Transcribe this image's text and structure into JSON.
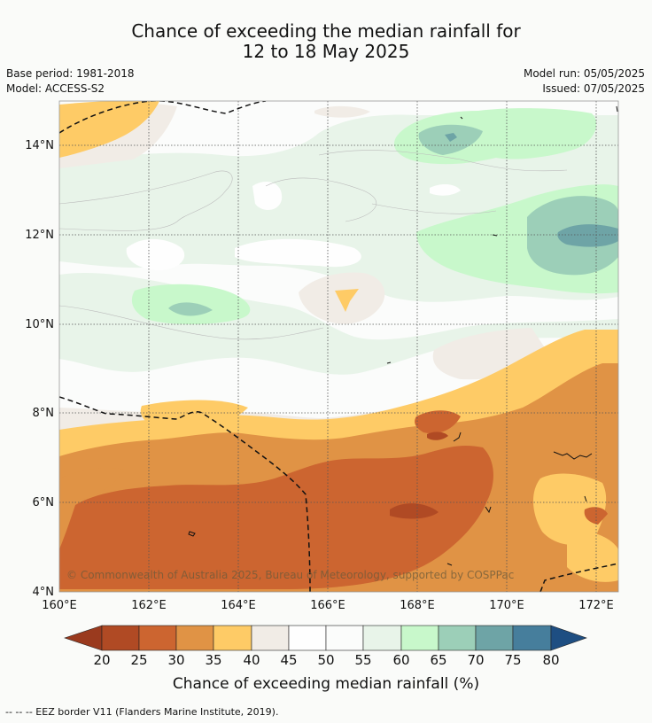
{
  "header": {
    "title_line1": "Chance of exceeding the median rainfall for",
    "title_line2": "12 to 18 May 2025",
    "base_period": "Base period: 1981-2018",
    "model": "Model: ACCESS-S2",
    "model_run": "Model run: 05/05/2025",
    "issued": "Issued: 07/05/2025"
  },
  "map": {
    "lat_labels": [
      "14°N",
      "12°N",
      "10°N",
      "8°N",
      "6°N",
      "4°N"
    ],
    "lon_labels": [
      "160°E",
      "162°E",
      "164°E",
      "166°E",
      "168°E",
      "170°E",
      "172°E"
    ],
    "copyright": "© Commonwealth of Australia 2025, Bureau of Meteorology, supported by COSPPac"
  },
  "colorbar": {
    "ticks": [
      "20",
      "25",
      "30",
      "35",
      "40",
      "45",
      "50",
      "55",
      "60",
      "65",
      "70",
      "75",
      "80"
    ],
    "colors": [
      "#9a3a1e",
      "#b04a24",
      "#cc6530",
      "#e09345",
      "#fecb66",
      "#f1ece6",
      "#fefefe",
      "#fbfcfb",
      "#e8f4e9",
      "#c8f8cb",
      "#9ccfb8",
      "#6ea4a6",
      "#467e9c",
      "#1e4e82"
    ],
    "title": "Chance of exceeding median rainfall (%)"
  },
  "footnote": "-- -- -- EEZ border V11 (Flanders Marine Institute, 2019)."
}
